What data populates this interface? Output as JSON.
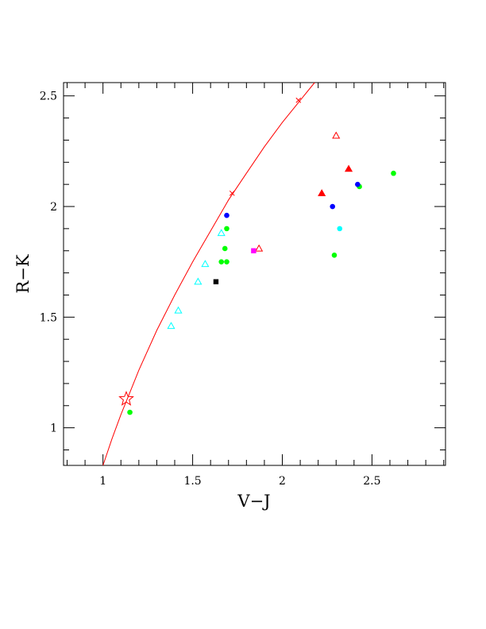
{
  "chart_data": {
    "type": "scatter",
    "title": "",
    "xlabel": "V−J",
    "ylabel": "R−K",
    "xlim": [
      0.78,
      2.91
    ],
    "ylim": [
      0.83,
      2.56
    ],
    "xticks": [
      {
        "value": 1,
        "label": "1"
      },
      {
        "value": 1.5,
        "label": "1.5"
      },
      {
        "value": 2,
        "label": "2"
      },
      {
        "value": 2.5,
        "label": "2.5"
      }
    ],
    "yticks": [
      {
        "value": 1,
        "label": "1"
      },
      {
        "value": 1.5,
        "label": "1.5"
      },
      {
        "value": 2,
        "label": "2"
      },
      {
        "value": 2.5,
        "label": "2.5"
      }
    ],
    "grid": false,
    "curve": {
      "color": "#ff0000",
      "points": [
        [
          1.0,
          0.83
        ],
        [
          1.05,
          0.95
        ],
        [
          1.1,
          1.06
        ],
        [
          1.15,
          1.16
        ],
        [
          1.2,
          1.26
        ],
        [
          1.3,
          1.44
        ],
        [
          1.4,
          1.6
        ],
        [
          1.5,
          1.75
        ],
        [
          1.6,
          1.89
        ],
        [
          1.7,
          2.03
        ],
        [
          1.8,
          2.15
        ],
        [
          1.9,
          2.27
        ],
        [
          2.0,
          2.38
        ],
        [
          2.1,
          2.48
        ],
        [
          2.18,
          2.56
        ]
      ],
      "crosses": [
        [
          1.72,
          2.06
        ],
        [
          2.09,
          2.48
        ]
      ]
    },
    "star": {
      "x": 1.13,
      "y": 1.13,
      "color": "#ff0000"
    },
    "series": [
      {
        "marker": "triangle-open",
        "color": "#00ffff",
        "points": [
          [
            1.38,
            1.46
          ],
          [
            1.42,
            1.53
          ],
          [
            1.53,
            1.66
          ],
          [
            1.57,
            1.74
          ],
          [
            1.66,
            1.88
          ]
        ]
      },
      {
        "marker": "triangle-open",
        "color": "#ff0000",
        "points": [
          [
            1.87,
            1.81
          ],
          [
            2.3,
            2.32
          ]
        ]
      },
      {
        "marker": "triangle-filled",
        "color": "#ff0000",
        "points": [
          [
            2.22,
            2.06
          ],
          [
            2.37,
            2.17
          ]
        ]
      },
      {
        "marker": "circle-filled",
        "color": "#00ff00",
        "points": [
          [
            1.15,
            1.07
          ],
          [
            1.66,
            1.75
          ],
          [
            1.69,
            1.75
          ],
          [
            1.68,
            1.81
          ],
          [
            1.69,
            1.9
          ],
          [
            2.29,
            1.78
          ],
          [
            2.43,
            2.09
          ],
          [
            2.62,
            2.15
          ]
        ]
      },
      {
        "marker": "circle-filled",
        "color": "#0000ff",
        "points": [
          [
            1.69,
            1.96
          ],
          [
            2.28,
            2.0
          ],
          [
            2.42,
            2.1
          ]
        ]
      },
      {
        "marker": "circle-filled",
        "color": "#00ffff",
        "points": [
          [
            2.32,
            1.9
          ]
        ]
      },
      {
        "marker": "square-filled",
        "color": "#ff00ff",
        "points": [
          [
            1.84,
            1.8
          ]
        ]
      },
      {
        "marker": "square-filled",
        "color": "#000000",
        "points": [
          [
            1.63,
            1.66
          ]
        ]
      }
    ]
  }
}
